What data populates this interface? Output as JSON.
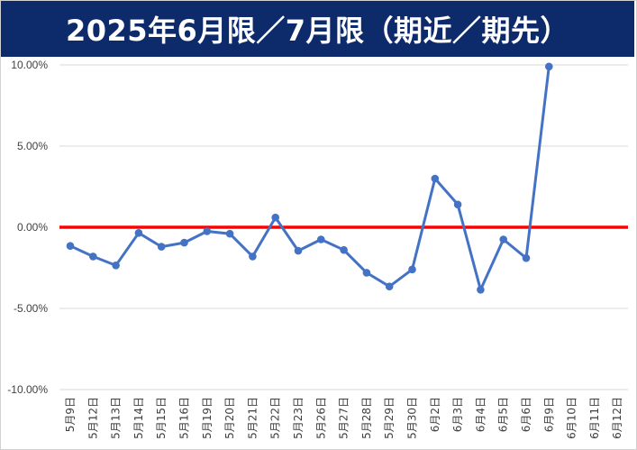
{
  "title": "2025年6月限／7月限（期近／期先）",
  "colors": {
    "title_bg": "#0d2a6b",
    "title_text": "#ffffff",
    "series_line": "#4472c4",
    "zero_line": "#ff0000",
    "grid": "#d9d9d9",
    "axis_text": "#404040"
  },
  "chart_data": {
    "type": "line",
    "title": "2025年6月限／7月限（期近／期先）",
    "categories": [
      "5月9日",
      "5月12日",
      "5月13日",
      "5月14日",
      "5月15日",
      "5月16日",
      "5月19日",
      "5月20日",
      "5月21日",
      "5月22日",
      "5月23日",
      "5月26日",
      "5月27日",
      "5月28日",
      "5月29日",
      "5月30日",
      "6月2日",
      "6月3日",
      "6月4日",
      "6月5日",
      "6月6日",
      "6月9日",
      "6月10日",
      "6月11日",
      "6月12日"
    ],
    "y_tick_labels": [
      "10.00%",
      "5.00%",
      "0.00%",
      "-5.00%",
      "-10.00%"
    ],
    "y_ticks": [
      10,
      5,
      0,
      -5,
      -10
    ],
    "ylim": [
      -10,
      10
    ],
    "y_unit": "%",
    "grid": true,
    "legend": "none",
    "reference_line": {
      "value": 0,
      "color": "#ff0000"
    },
    "series": [
      {
        "color": "#4472c4",
        "values": [
          -1.15,
          -1.8,
          -2.35,
          -0.35,
          -1.2,
          -0.95,
          -0.25,
          -0.4,
          -1.8,
          0.6,
          -1.45,
          -0.75,
          -1.4,
          -2.8,
          -3.65,
          -2.6,
          3.0,
          1.4,
          -3.85,
          -0.75,
          -1.9,
          9.9,
          null,
          null,
          null
        ]
      }
    ]
  }
}
